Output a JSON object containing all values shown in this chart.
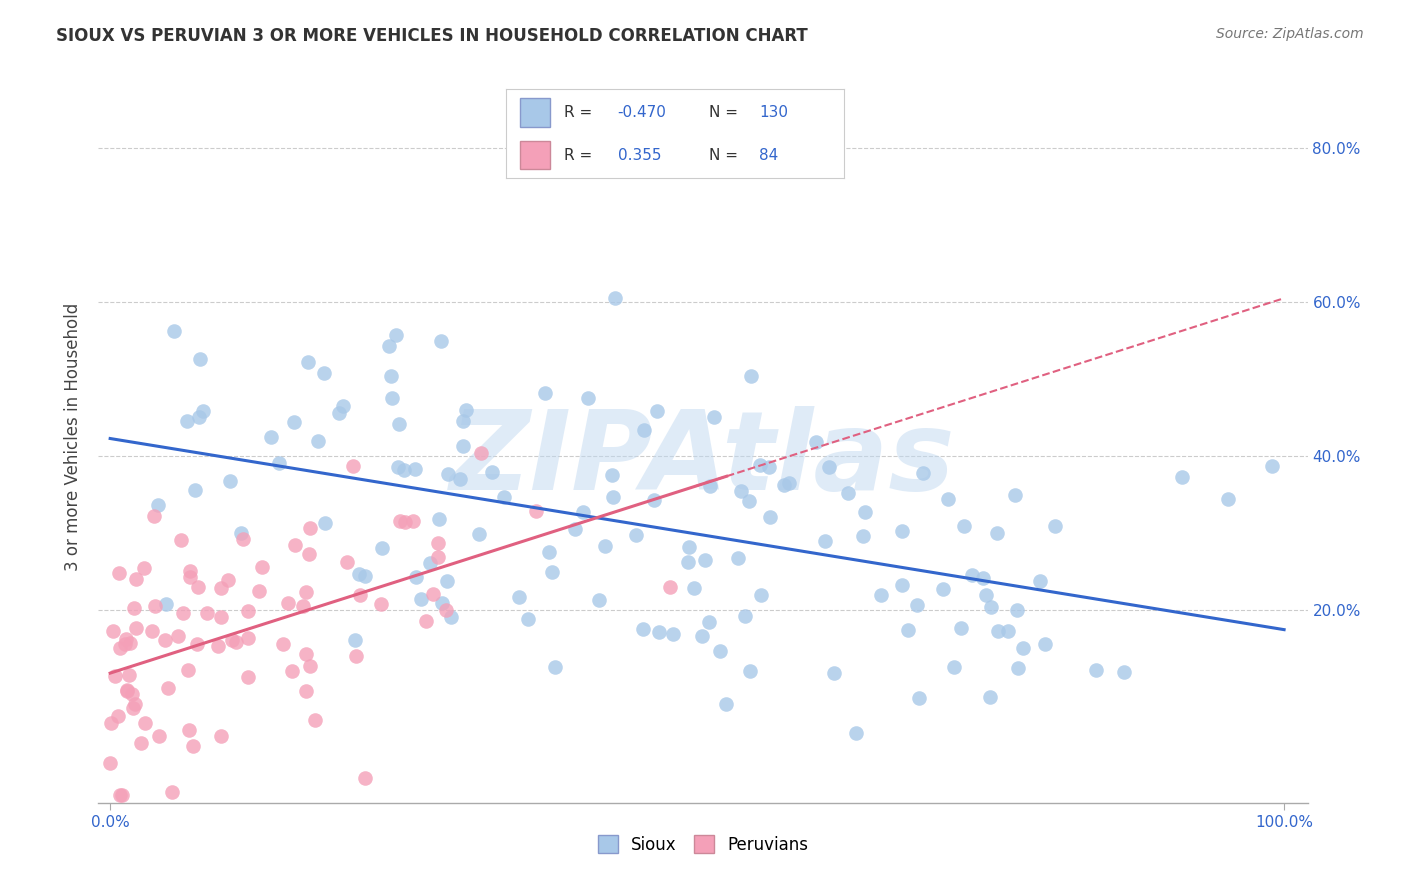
{
  "title": "SIOUX VS PERUVIAN 3 OR MORE VEHICLES IN HOUSEHOLD CORRELATION CHART",
  "source_text": "Source: ZipAtlas.com",
  "ylabel": "3 or more Vehicles in Household",
  "xlim": [
    -0.01,
    1.02
  ],
  "ylim": [
    -0.05,
    0.9
  ],
  "xtick_labels": [
    "0.0%",
    "100.0%"
  ],
  "xtick_vals": [
    0.0,
    1.0
  ],
  "ytick_labels": [
    "20.0%",
    "40.0%",
    "60.0%",
    "80.0%"
  ],
  "ytick_vals": [
    0.2,
    0.4,
    0.6,
    0.8
  ],
  "sioux_R": -0.47,
  "sioux_N": 130,
  "peruvian_R": 0.355,
  "peruvian_N": 84,
  "sioux_color": "#a8c8e8",
  "peruvian_color": "#f4a0b8",
  "sioux_line_color": "#3366cc",
  "peruvian_line_color": "#e06080",
  "watermark": "ZIPAtlas",
  "watermark_color": "#c0d8f0",
  "background_color": "#ffffff",
  "grid_color": "#cccccc",
  "legend_box_color": "#f0f0f8",
  "text_color": "#3366cc",
  "title_color": "#333333"
}
